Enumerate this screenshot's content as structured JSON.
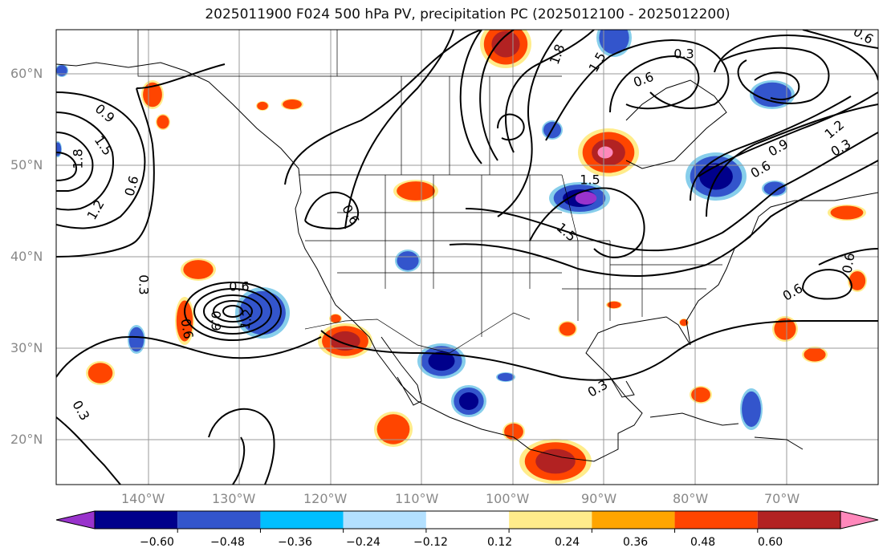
{
  "title": "2025011900 F024 500 hPa PV, precipitation PC (2025012100 - 2025012200)",
  "lat_labels": [
    "60°N",
    "50°N",
    "40°N",
    "30°N",
    "20°N"
  ],
  "lon_labels": [
    "140°W",
    "130°W",
    "120°W",
    "110°W",
    "100°W",
    "90°W",
    "80°W",
    "70°W"
  ],
  "contour_labels": [
    {
      "text": "0.9"
    },
    {
      "text": "1.5"
    },
    {
      "text": "1.8"
    },
    {
      "text": "1.2"
    },
    {
      "text": "0.6"
    },
    {
      "text": "0.3"
    },
    {
      "text": "0.6"
    },
    {
      "text": "0.6"
    },
    {
      "text": "1.2"
    },
    {
      "text": "1.5"
    },
    {
      "text": "1.8"
    },
    {
      "text": "1.5"
    },
    {
      "text": "0.6"
    },
    {
      "text": "0.6"
    },
    {
      "text": "0.6"
    },
    {
      "text": "1.2"
    },
    {
      "text": "0.9"
    },
    {
      "text": "0.6"
    },
    {
      "text": "0.3"
    },
    {
      "text": "0.3"
    },
    {
      "text": "0.6"
    },
    {
      "text": "0.9"
    },
    {
      "text": "0.3"
    },
    {
      "text": "0.3"
    },
    {
      "text": "1.5"
    },
    {
      "text": "0.6"
    }
  ],
  "colorbar": {
    "colors": [
      "#9933cc",
      "#00008b",
      "#3355cc",
      "#00bfff",
      "#b3e0ff",
      "#ffffff",
      "#ffec8b",
      "#ffa500",
      "#ff4500",
      "#b22222",
      "#ff88bb"
    ],
    "tick_labels": [
      "−0.60",
      "−0.48",
      "−0.36",
      "−0.24",
      "−0.12",
      "0.12",
      "0.24",
      "0.36",
      "0.48",
      "0.60"
    ]
  },
  "precip_colors": {
    "neg_light": "#87ceeb",
    "neg_mid": "#3355cc",
    "neg_dark": "#00008b",
    "neg_violet": "#9933cc",
    "pos_light": "#ffec8b",
    "pos_mid": "#ff4500",
    "pos_dark": "#b22222",
    "pos_pink": "#ff88bb"
  }
}
